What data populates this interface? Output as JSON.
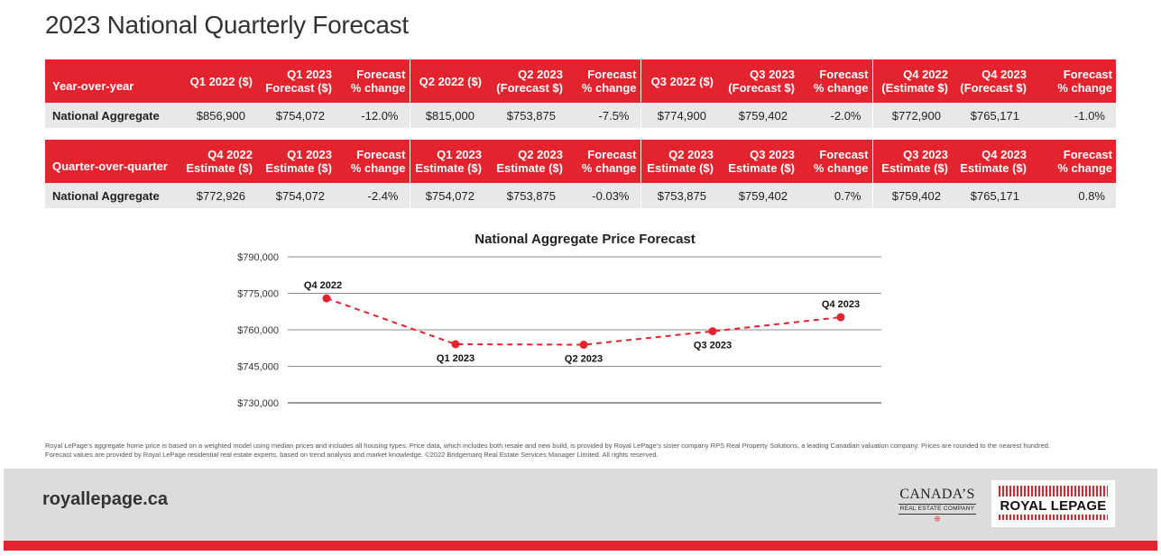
{
  "title": "2023 National Quarterly Forecast",
  "yoy_table": {
    "headers": [
      "Year-over-year",
      "Q1 2022 ($)",
      "Q1 2023\nForecast ($)",
      "Forecast\n% change",
      "Q2 2022 ($)",
      "Q2 2023\n(Forecast $)",
      "Forecast\n% change",
      "Q3 2022 ($)",
      "Q3 2023\n(Forecast $)",
      "Forecast\n% change",
      "Q4 2022\n(Estimate $)",
      "Q4 2023\n(Forecast $)",
      "Forecast\n% change"
    ],
    "rows": [
      [
        "National Aggregate",
        "$856,900",
        "$754,072",
        "-12.0%",
        "$815,000",
        "$753,875",
        "-7.5%",
        "$774,900",
        "$759,402",
        "-2.0%",
        "$772,900",
        "$765,171",
        "-1.0%"
      ]
    ]
  },
  "qoq_table": {
    "headers": [
      "Quarter-over-quarter",
      "Q4 2022\nEstimate ($)",
      "Q1 2023\nEstimate ($)",
      "Forecast\n% change",
      "Q1 2023\nEstimate ($)",
      "Q2 2023\nEstimate ($)",
      "Forecast\n% change",
      "Q2 2023\nEstimate ($)",
      "Q3 2023\nEstimate ($)",
      "Forecast\n% change",
      "Q3 2023\nEstimate ($)",
      "Q4 2023\nEstimate ($)",
      "Forecast\n% change"
    ],
    "rows": [
      [
        "National Aggregate",
        "$772,926",
        "$754,072",
        "-2.4%",
        "$754,072",
        "$753,875",
        "-0.03%",
        "$753,875",
        "$759,402",
        "0.7%",
        "$759,402",
        "$765,171",
        "0.8%"
      ]
    ]
  },
  "chart_data": {
    "type": "line",
    "title": "National Aggregate Price Forecast",
    "xlabel": "",
    "ylabel": "",
    "categories": [
      "Q4 2022",
      "Q1 2023",
      "Q2 2023",
      "Q3 2023",
      "Q4 2023"
    ],
    "values": [
      772926,
      754072,
      753875,
      759402,
      765171
    ],
    "label_positions": [
      "above",
      "below",
      "below",
      "below",
      "above"
    ],
    "ylim": [
      730000,
      790000
    ],
    "yticks": [
      730000,
      745000,
      760000,
      775000,
      790000
    ],
    "ytick_labels": [
      "$730,000",
      "$745,000",
      "$760,000",
      "$775,000",
      "$790,000"
    ],
    "grid": true,
    "line_style": "dashed",
    "color": "#e3232e"
  },
  "footnote": {
    "line1": "Royal LePage’s aggregate home price is based on a weighted model using median prices and includes all housing types. Price data, which includes both resale and new build, is provided by Royal LePage’s sister company RPS Real Property Solutions, a leading Canadian valuation company. Prices are rounded to the nearest hundred.",
    "line2": "Forecast values are provided by Royal LePage residential real estate experts, based on trend analysis and market knowledge. ©2022 Bridgemarq Real Estate Services Manager Limited. All rights reserved."
  },
  "footer": {
    "url": "royallepage.ca",
    "canada_logo_big": "CANADA’S",
    "canada_logo_small": "REAL ESTATE COMPANY",
    "brand_logo": "ROYAL LEPAGE"
  },
  "colors": {
    "accent": "#e3232e",
    "row_bg": "#e8e8e8",
    "footer_bg": "#dcdcdc"
  }
}
